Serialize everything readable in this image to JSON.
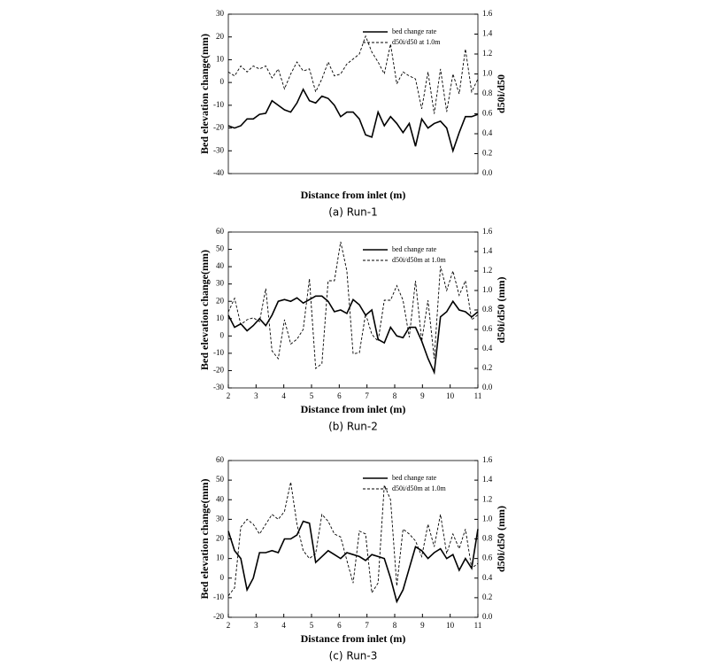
{
  "chart_data": [
    {
      "type": "line",
      "caption": "(a) Run-1",
      "x_label": "Distance from inlet (m)",
      "y_label": "Bed elevation change(mm)",
      "y2_label": "d50i/d50",
      "legend": "upper right",
      "xlim": [
        2,
        11
      ],
      "x": [
        2,
        2.225,
        2.45,
        2.675,
        2.9,
        3.125,
        3.35,
        3.575,
        3.8,
        4.025,
        4.25,
        4.475,
        4.7,
        4.925,
        5.15,
        5.375,
        5.6,
        5.825,
        6.05,
        6.275,
        6.5,
        6.725,
        6.95,
        7.175,
        7.4,
        7.625,
        7.85,
        8.075,
        8.3,
        8.525,
        8.75,
        8.975,
        9.2,
        9.425,
        9.65,
        9.875,
        10.1,
        10.325,
        10.55,
        10.775,
        11
      ],
      "ylim": [
        -40,
        30
      ],
      "yticks": [
        -40,
        -30,
        -20,
        -10,
        0,
        10,
        20,
        30
      ],
      "y2lim": [
        0,
        1.6
      ],
      "y2ticks": [
        {
          "value": 0,
          "label": "0.0"
        },
        0.2,
        0.4,
        0.6,
        0.8,
        {
          "value": 1,
          "label": "1.0"
        },
        1.2,
        1.4,
        1.6
      ],
      "series": [
        {
          "name": "bed change rate",
          "color": "#000000",
          "values": [
            -19,
            -20,
            -19,
            -16,
            -16,
            -14,
            -13.5,
            -8,
            -10,
            -12,
            -13,
            -9,
            -3,
            -8,
            -9,
            -6,
            -7,
            -10,
            -15,
            -13,
            -13,
            -16,
            -23,
            -24,
            -13,
            -19,
            -15,
            -18,
            -22,
            -18,
            -28,
            -16,
            -20,
            -18,
            -17,
            -20,
            -30,
            -22,
            -15,
            -15,
            -14
          ]
        },
        {
          "name": "d50i/d50 at 1.0m",
          "color": "#000000",
          "dashed": true,
          "axis": "y2",
          "values": [
            1.02,
            0.98,
            1.08,
            1.02,
            1.08,
            1.05,
            1.08,
            0.96,
            1.05,
            0.85,
            1.0,
            1.12,
            1.03,
            1.05,
            0.82,
            0.95,
            1.12,
            0.98,
            1.0,
            1.1,
            1.15,
            1.2,
            1.38,
            1.22,
            1.12,
            1.0,
            1.3,
            0.9,
            1.02,
            0.98,
            0.95,
            0.65,
            1.02,
            0.6,
            1.05,
            0.62,
            1.0,
            0.8,
            1.25,
            0.82,
            0.95
          ]
        }
      ]
    },
    {
      "type": "line",
      "caption": "(b) Run-2",
      "x_label": "Distance from inlet (m)",
      "y_label": "Bed elevation change(mm)",
      "y2_label": "d50i/d50 (mm)",
      "legend": "upper right",
      "xlim": [
        2,
        11
      ],
      "xticks": [
        2,
        3,
        4,
        5,
        6,
        7,
        8,
        9,
        10,
        11
      ],
      "x": [
        2,
        2.225,
        2.45,
        2.675,
        2.9,
        3.125,
        3.35,
        3.575,
        3.8,
        4.025,
        4.25,
        4.475,
        4.7,
        4.925,
        5.15,
        5.375,
        5.6,
        5.825,
        6.05,
        6.275,
        6.5,
        6.725,
        6.95,
        7.175,
        7.4,
        7.625,
        7.85,
        8.075,
        8.3,
        8.525,
        8.75,
        8.975,
        9.2,
        9.425,
        9.65,
        9.875,
        10.1,
        10.325,
        10.55,
        10.775,
        11
      ],
      "ylim": [
        -30,
        60
      ],
      "yticks": [
        -30,
        -20,
        -10,
        0,
        10,
        20,
        30,
        40,
        50,
        60
      ],
      "y2lim": [
        0,
        1.6
      ],
      "y2ticks": [
        {
          "value": 0,
          "label": "0.0"
        },
        0.2,
        0.4,
        0.6,
        0.8,
        {
          "value": 1,
          "label": "1.0"
        },
        1.2,
        1.4,
        1.6
      ],
      "series": [
        {
          "name": "bed change rate",
          "color": "#000000",
          "values": [
            12,
            5,
            7,
            3,
            6,
            10,
            6,
            12,
            20,
            21,
            20,
            22,
            19,
            21,
            23,
            23,
            20,
            14,
            15,
            13,
            21,
            18,
            12,
            15,
            -2,
            -4,
            5,
            0,
            -1,
            5,
            5,
            -3,
            -13,
            -21,
            11,
            14,
            20,
            15,
            14,
            11,
            14
          ]
        },
        {
          "name": "d50i/d50m at 1.0m",
          "color": "#000000",
          "dashed": true,
          "axis": "y2",
          "values": [
            0.78,
            0.92,
            0.65,
            0.7,
            0.72,
            0.68,
            1.02,
            0.38,
            0.3,
            0.7,
            0.45,
            0.5,
            0.6,
            1.12,
            0.2,
            0.25,
            1.1,
            1.1,
            1.5,
            1.2,
            0.35,
            0.36,
            0.76,
            0.55,
            0.48,
            0.9,
            0.9,
            1.05,
            0.9,
            0.52,
            1.1,
            0.48,
            0.9,
            0.3,
            1.25,
            1.0,
            1.2,
            0.95,
            1.1,
            0.7,
            0.75
          ]
        }
      ]
    },
    {
      "type": "line",
      "caption": "(c) Run-3",
      "x_label": "Distance from inlet (m)",
      "y_label": "Bed elevation change(mm)",
      "y2_label": "d50i/d50 (mm)",
      "legend": "upper right",
      "xlim": [
        2,
        11
      ],
      "xticks": [
        2,
        3,
        4,
        5,
        6,
        7,
        8,
        9,
        10,
        11
      ],
      "x": [
        2,
        2.225,
        2.45,
        2.675,
        2.9,
        3.125,
        3.35,
        3.575,
        3.8,
        4.025,
        4.25,
        4.475,
        4.7,
        4.925,
        5.15,
        5.375,
        5.6,
        5.825,
        6.05,
        6.275,
        6.5,
        6.725,
        6.95,
        7.175,
        7.4,
        7.625,
        7.85,
        8.075,
        8.3,
        8.525,
        8.75,
        8.975,
        9.2,
        9.425,
        9.65,
        9.875,
        10.1,
        10.325,
        10.55,
        10.775,
        11
      ],
      "ylim": [
        -20,
        60
      ],
      "yticks": [
        -20,
        -10,
        0,
        10,
        20,
        30,
        40,
        50,
        60
      ],
      "y2lim": [
        0,
        1.6
      ],
      "y2ticks": [
        {
          "value": 0,
          "label": "0.0"
        },
        0.2,
        0.4,
        0.6,
        0.8,
        {
          "value": 1,
          "label": "1.0"
        },
        1.2,
        1.4,
        1.6
      ],
      "series": [
        {
          "name": "bed change rate",
          "color": "#000000",
          "values": [
            24,
            14,
            10,
            -6,
            0,
            13,
            13,
            14,
            13,
            20,
            20,
            22,
            29,
            28,
            8,
            11,
            14,
            12,
            10,
            13,
            12,
            11,
            9,
            12,
            11,
            10,
            0,
            -12,
            -6,
            5,
            16,
            14,
            10,
            13,
            15,
            10,
            12,
            4,
            10,
            5,
            25
          ]
        },
        {
          "name": "d50i/d50m at 1.0m",
          "color": "#000000",
          "dashed": true,
          "axis": "y2",
          "values": [
            0.22,
            0.3,
            0.92,
            1.0,
            0.95,
            0.85,
            0.95,
            1.05,
            1.0,
            1.08,
            1.38,
            0.95,
            0.68,
            0.6,
            0.65,
            1.05,
            0.98,
            0.85,
            0.82,
            0.58,
            0.35,
            0.88,
            0.85,
            0.25,
            0.35,
            1.35,
            1.2,
            0.32,
            0.9,
            0.85,
            0.78,
            0.62,
            0.95,
            0.72,
            1.05,
            0.65,
            0.85,
            0.7,
            0.9,
            0.5,
            0.55
          ]
        }
      ]
    }
  ]
}
